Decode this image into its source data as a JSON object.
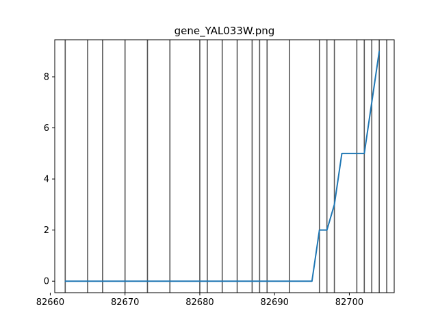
{
  "chart_data": {
    "type": "line",
    "title": "gene_YAL033W.png",
    "xlabel": "",
    "ylabel": "",
    "xlim": [
      82660.6,
      82706.0
    ],
    "ylim": [
      -0.45,
      9.45
    ],
    "x_ticks": [
      82660,
      82670,
      82680,
      82690,
      82700
    ],
    "y_ticks": [
      0,
      2,
      4,
      6,
      8
    ],
    "grid": false,
    "legend": "none",
    "series": [
      {
        "color": "#1f77b4",
        "x": [
          82662,
          82695,
          82696,
          82697,
          82698,
          82699,
          82701,
          82702,
          82704
        ],
        "y": [
          0,
          0,
          2,
          2,
          3,
          5,
          5,
          5,
          9
        ]
      }
    ],
    "vertical_lines": {
      "color": "#555555",
      "x": [
        82662,
        82665,
        82667,
        82670,
        82673,
        82676,
        82680,
        82681,
        82683,
        82685,
        82687,
        82688,
        82689,
        82692,
        82696,
        82697,
        82698,
        82701,
        82702,
        82703,
        82704,
        82705
      ]
    }
  }
}
